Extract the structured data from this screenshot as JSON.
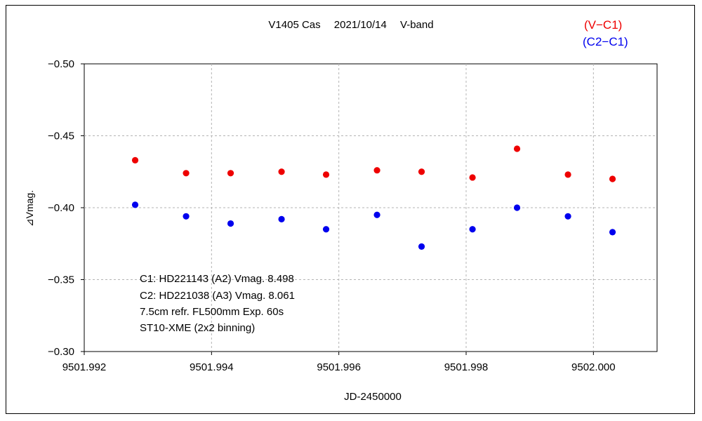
{
  "chart_data": {
    "type": "scatter",
    "title": "V1405 Cas　 2021/10/14　 V-band",
    "xlabel": "JD-2450000",
    "ylabel": "⊿Vmag.",
    "xlim": [
      9501.992,
      9502.001
    ],
    "ylim": [
      -0.5,
      -0.3
    ],
    "y_inverted": true,
    "grid": true,
    "x_ticks": [
      9501.992,
      9501.994,
      9501.996,
      9501.998,
      9502.0
    ],
    "x_tick_labels": [
      "9501.992",
      "9501.994",
      "9501.996",
      "9501.998",
      "9502.000"
    ],
    "y_ticks": [
      -0.5,
      -0.45,
      -0.4,
      -0.35,
      -0.3
    ],
    "y_tick_labels": [
      "−0.50",
      "−0.45",
      "−0.40",
      "−0.35",
      "−0.30"
    ],
    "legend_position": "top-right",
    "series": [
      {
        "name": "(V−C1)",
        "color": "#ee0000",
        "x": [
          9501.9928,
          9501.9936,
          9501.9943,
          9501.9951,
          9501.9958,
          9501.9966,
          9501.9973,
          9501.9981,
          9501.9988,
          9501.9996,
          9502.0003
        ],
        "y": [
          -0.433,
          -0.424,
          -0.424,
          -0.425,
          -0.423,
          -0.426,
          -0.425,
          -0.421,
          -0.441,
          -0.423,
          -0.42
        ]
      },
      {
        "name": "(C2−C1)",
        "color": "#0000ee",
        "x": [
          9501.9928,
          9501.9936,
          9501.9943,
          9501.9951,
          9501.9958,
          9501.9966,
          9501.9973,
          9501.9981,
          9501.9988,
          9501.9996,
          9502.0003
        ],
        "y": [
          -0.402,
          -0.394,
          -0.389,
          -0.392,
          -0.385,
          -0.395,
          -0.373,
          -0.385,
          -0.4,
          -0.394,
          -0.383
        ]
      }
    ],
    "annotations": [
      "C1: HD221143 (A2) Vmag. 8.498",
      "C2: HD221038 (A3) Vmag. 8.061",
      "7.5cm refr. FL500mm Exp. 60s",
      "ST10-XME (2x2 binning)"
    ]
  }
}
